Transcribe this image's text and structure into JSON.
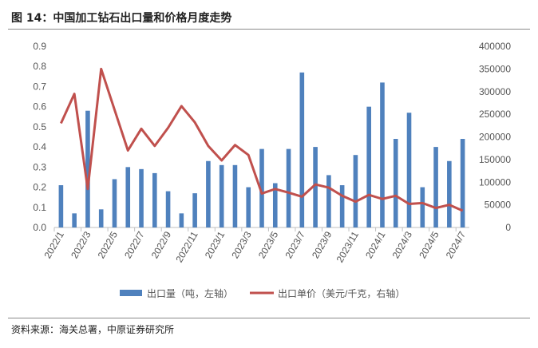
{
  "title": "图 14：中国加工钻石出口量和价格月度走势",
  "source": "资料来源：海关总署，中原证券研究所",
  "chart_data": {
    "type": "bar+line",
    "title": "中国加工钻石出口量和价格月度走势",
    "categories": [
      "2022/1",
      "2022/2",
      "2022/3",
      "2022/4",
      "2022/5",
      "2022/6",
      "2022/7",
      "2022/8",
      "2022/9",
      "2022/10",
      "2022/11",
      "2022/12",
      "2023/1",
      "2023/2",
      "2023/3",
      "2023/4",
      "2023/5",
      "2023/6",
      "2023/7",
      "2023/8",
      "2023/9",
      "2023/10",
      "2023/11",
      "2023/12",
      "2024/1",
      "2024/2",
      "2024/3",
      "2024/4",
      "2024/5",
      "2024/6",
      "2024/7"
    ],
    "tick_labels": [
      "2022/1",
      "2022/3",
      "2022/5",
      "2022/7",
      "2022/9",
      "2022/11",
      "2023/1",
      "2023/3",
      "2023/5",
      "2023/7",
      "2023/9",
      "2023/11",
      "2024/1",
      "2024/3",
      "2024/5",
      "2024/7"
    ],
    "left_ticks": [
      "0.0",
      "0.1",
      "0.2",
      "0.3",
      "0.4",
      "0.5",
      "0.6",
      "0.7",
      "0.8",
      "0.9"
    ],
    "right_ticks": [
      "0",
      "50000",
      "100000",
      "150000",
      "200000",
      "250000",
      "300000",
      "350000",
      "400000"
    ],
    "ylim_left": [
      0,
      0.9
    ],
    "ylim_right": [
      0,
      400000
    ],
    "series": [
      {
        "name": "出口量（吨，左轴）",
        "type": "bar",
        "axis": "left",
        "color": "#4f81bd",
        "values": [
          0.21,
          0.07,
          0.58,
          0.09,
          0.24,
          0.3,
          0.29,
          0.27,
          0.18,
          0.07,
          0.17,
          0.33,
          0.31,
          0.31,
          0.2,
          0.39,
          0.22,
          0.39,
          0.77,
          0.4,
          0.26,
          0.21,
          0.36,
          0.6,
          0.72,
          0.44,
          0.57,
          0.2,
          0.4,
          0.33,
          0.44
        ]
      },
      {
        "name": "出口单价（美元/千克，右轴）",
        "type": "line",
        "axis": "right",
        "color": "#c0504d",
        "values": [
          230000,
          295000,
          85000,
          350000,
          260000,
          170000,
          218000,
          180000,
          220000,
          268000,
          232000,
          180000,
          148000,
          182000,
          160000,
          75000,
          85000,
          77000,
          68000,
          95000,
          88000,
          70000,
          57000,
          72000,
          63000,
          70000,
          52000,
          54000,
          43000,
          50000,
          37000
        ]
      }
    ],
    "legend_position": "bottom"
  }
}
